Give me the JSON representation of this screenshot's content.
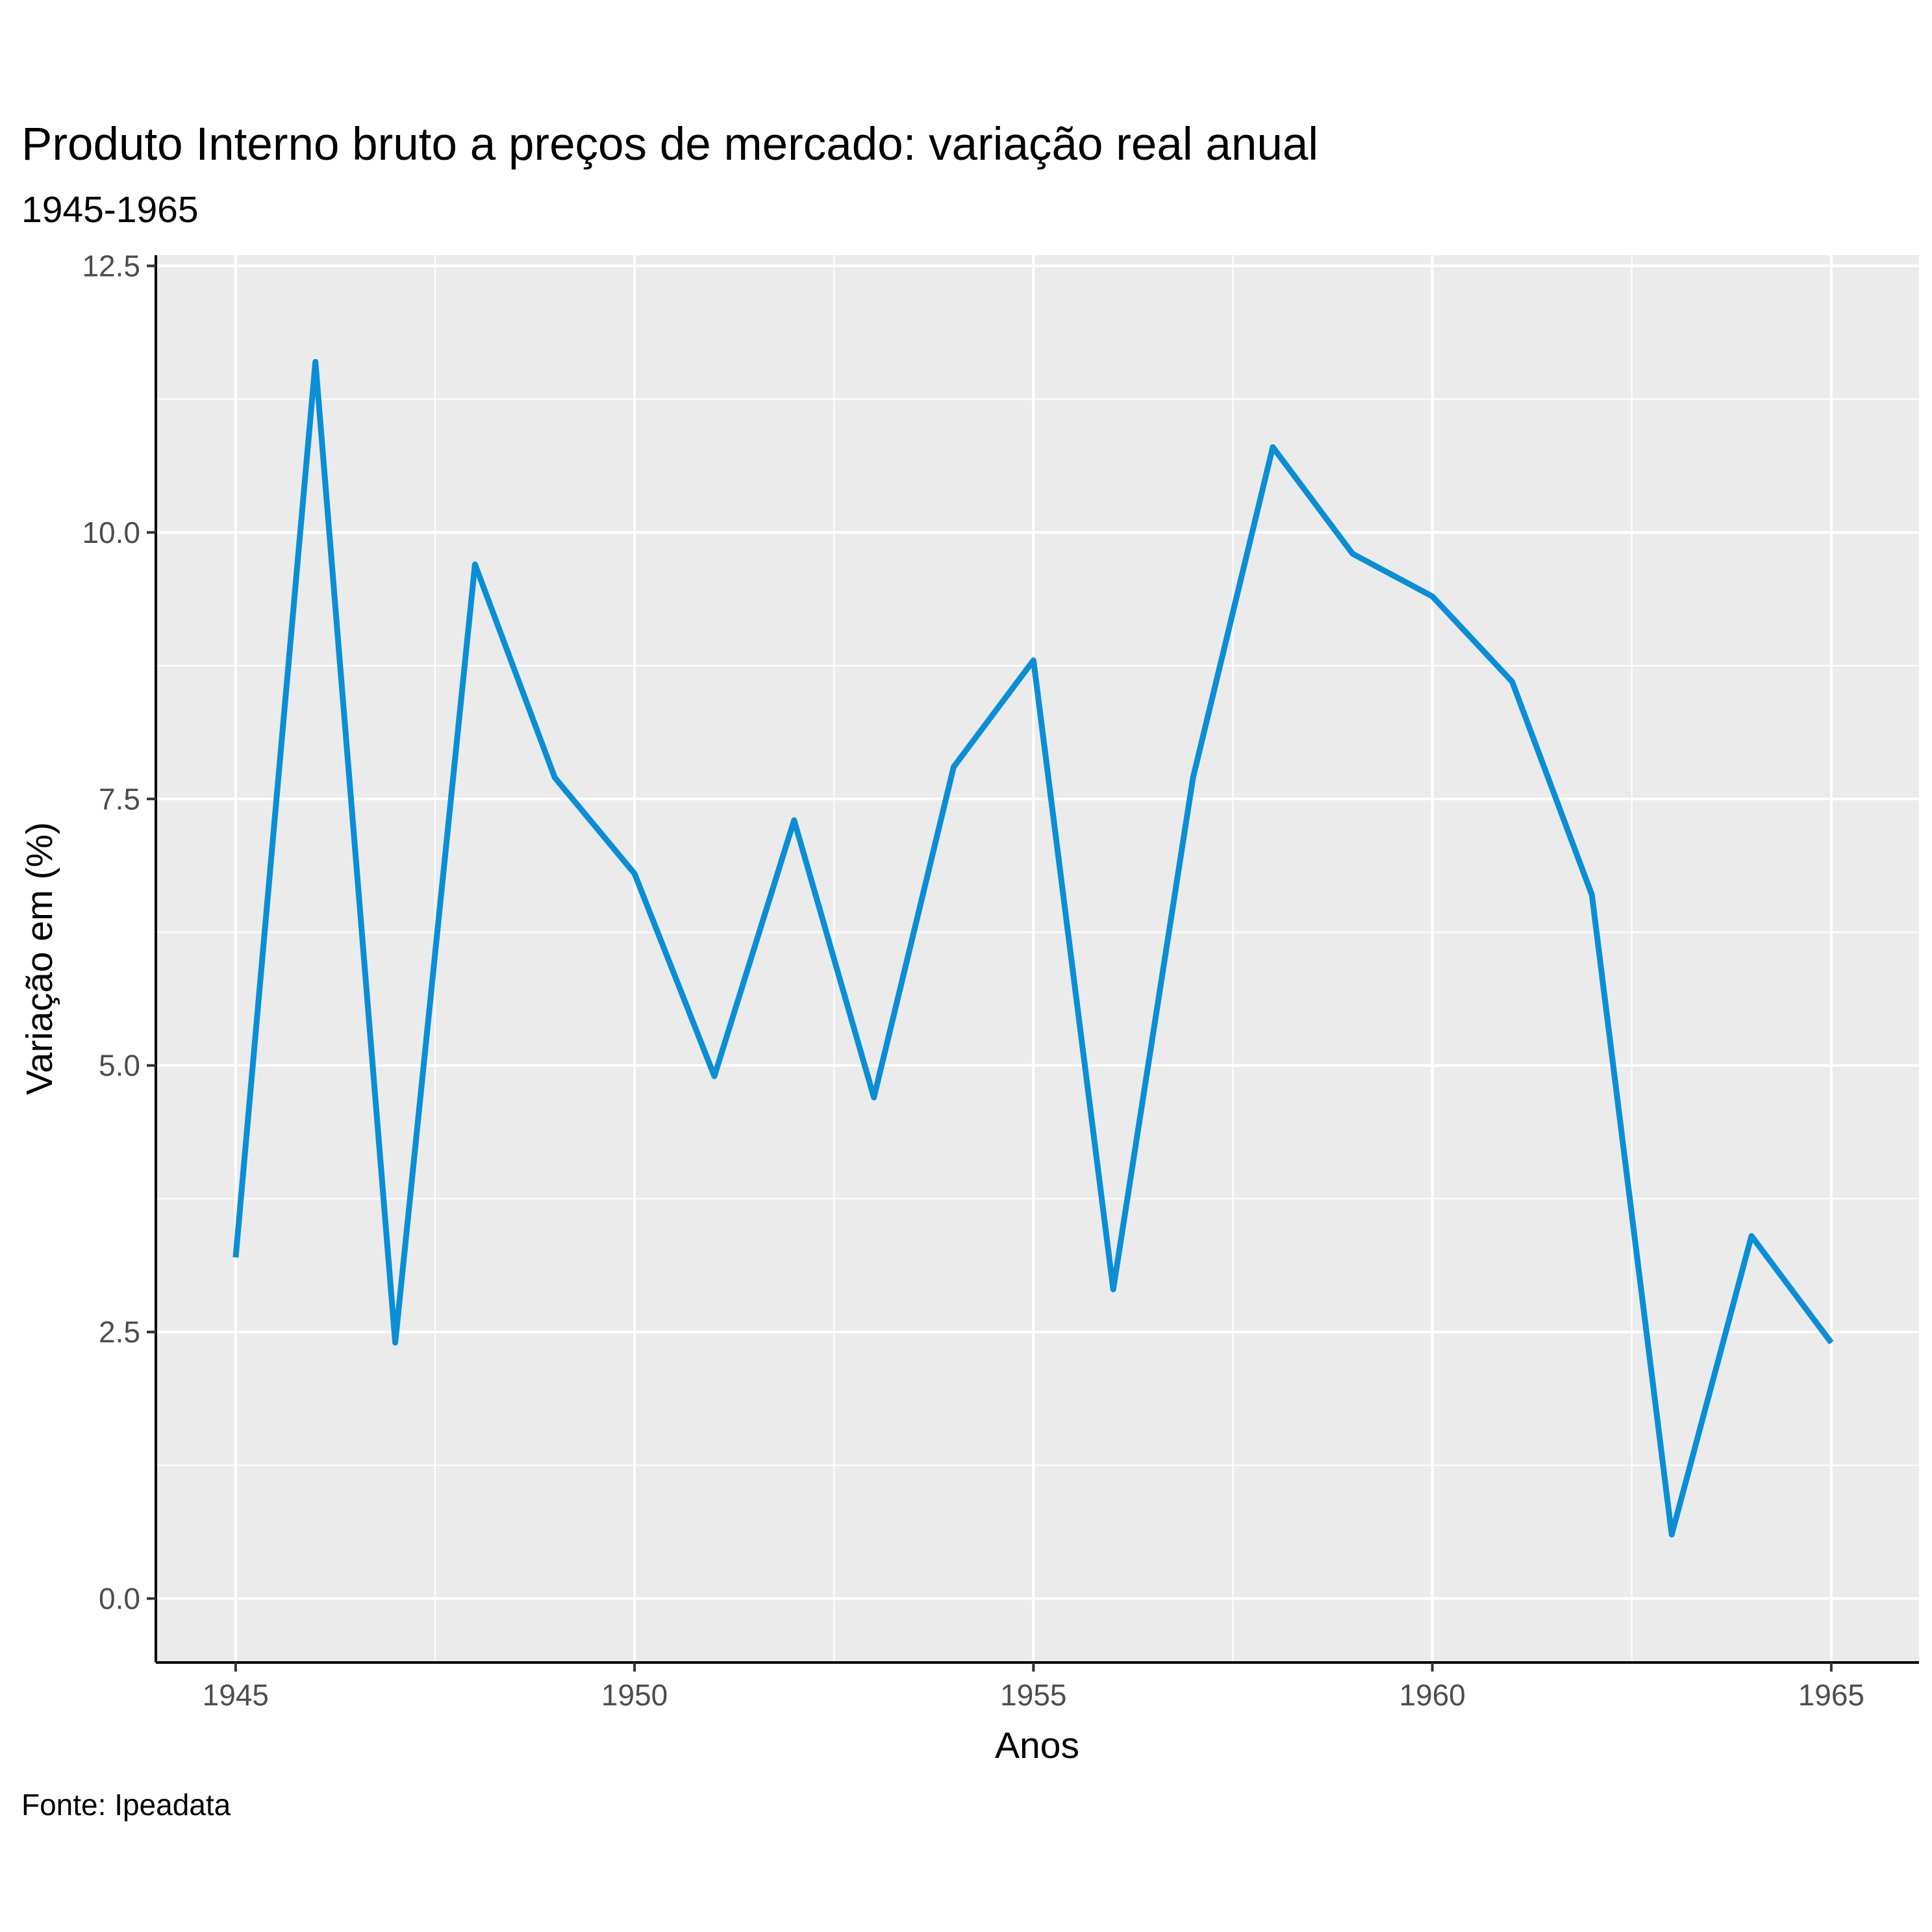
{
  "chart_data": {
    "type": "line",
    "title": "Produto Interno bruto a preços de mercado: variação real anual",
    "subtitle": "1945-1965",
    "xlabel": "Anos",
    "ylabel": "Variação em (%)",
    "caption": "Fonte: Ipeadata",
    "xlim": [
      1944,
      1966.1
    ],
    "ylim": [
      -0.6,
      12.6
    ],
    "x_ticks": [
      1945,
      1950,
      1955,
      1960,
      1965
    ],
    "x_tick_labels": [
      "1945",
      "1950",
      "1955",
      "1960",
      "1965"
    ],
    "y_ticks": [
      0,
      2.5,
      5,
      7.5,
      10,
      12.5
    ],
    "y_tick_labels": [
      "0.0",
      "2.5",
      "5.0",
      "7.5",
      "10.0",
      "12.5"
    ],
    "grid": true,
    "line_color": "#0a8fd6",
    "panel_color": "#ebebeb",
    "series": [
      {
        "x": [
          1945,
          1946,
          1947,
          1948,
          1949,
          1950,
          1951,
          1952,
          1953,
          1954,
          1955,
          1956,
          1957,
          1958,
          1959,
          1960,
          1961,
          1962,
          1963,
          1964,
          1965
        ],
        "values": [
          3.2,
          11.6,
          2.4,
          9.7,
          7.7,
          6.8,
          4.9,
          7.3,
          4.7,
          7.8,
          8.8,
          2.9,
          7.7,
          10.8,
          9.8,
          9.4,
          8.6,
          6.6,
          0.6,
          3.4,
          2.4
        ]
      }
    ]
  }
}
